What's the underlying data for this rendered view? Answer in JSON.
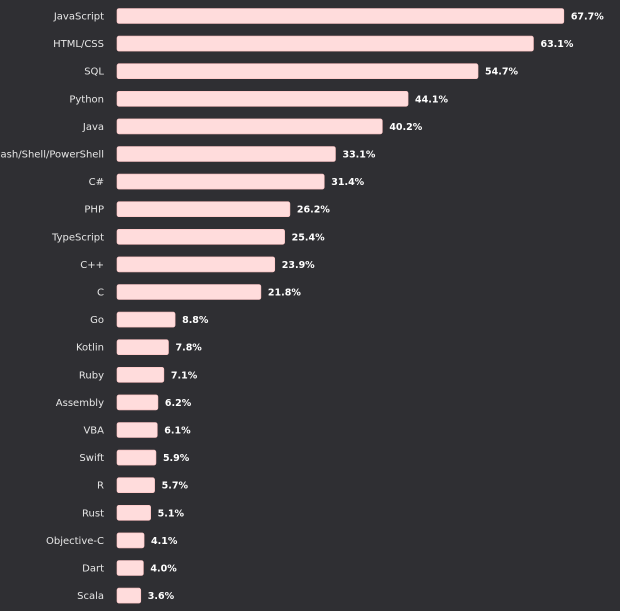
{
  "chart_data": {
    "type": "bar",
    "orientation": "horizontal",
    "categories": [
      "JavaScript",
      "HTML/CSS",
      "SQL",
      "Python",
      "Java",
      "Bash/Shell/PowerShell",
      "C#",
      "PHP",
      "TypeScript",
      "C++",
      "C",
      "Go",
      "Kotlin",
      "Ruby",
      "Assembly",
      "VBA",
      "Swift",
      "R",
      "Rust",
      "Objective-C",
      "Dart",
      "Scala"
    ],
    "values": [
      67.7,
      63.1,
      54.7,
      44.1,
      40.2,
      33.1,
      31.4,
      26.2,
      25.4,
      23.9,
      21.8,
      8.8,
      7.8,
      7.1,
      6.2,
      6.1,
      5.9,
      5.7,
      5.1,
      4.1,
      4.0,
      3.6
    ],
    "value_labels": [
      "67.7%",
      "63.1%",
      "54.7%",
      "44.1%",
      "40.2%",
      "33.1%",
      "31.4%",
      "26.2%",
      "25.4%",
      "23.9%",
      "21.8%",
      "8.8%",
      "7.8%",
      "7.1%",
      "6.2%",
      "6.1%",
      "5.9%",
      "5.7%",
      "5.1%",
      "4.1%",
      "4.0%",
      "3.6%"
    ],
    "xlim": [
      0,
      100
    ],
    "grid": false,
    "colors": {
      "background": "#2f2f33",
      "bar": "#ffdcdc",
      "bar_stroke": "#ffc4c4",
      "tick_text": "#e6e6e6",
      "value_text": "#ffffff"
    }
  }
}
